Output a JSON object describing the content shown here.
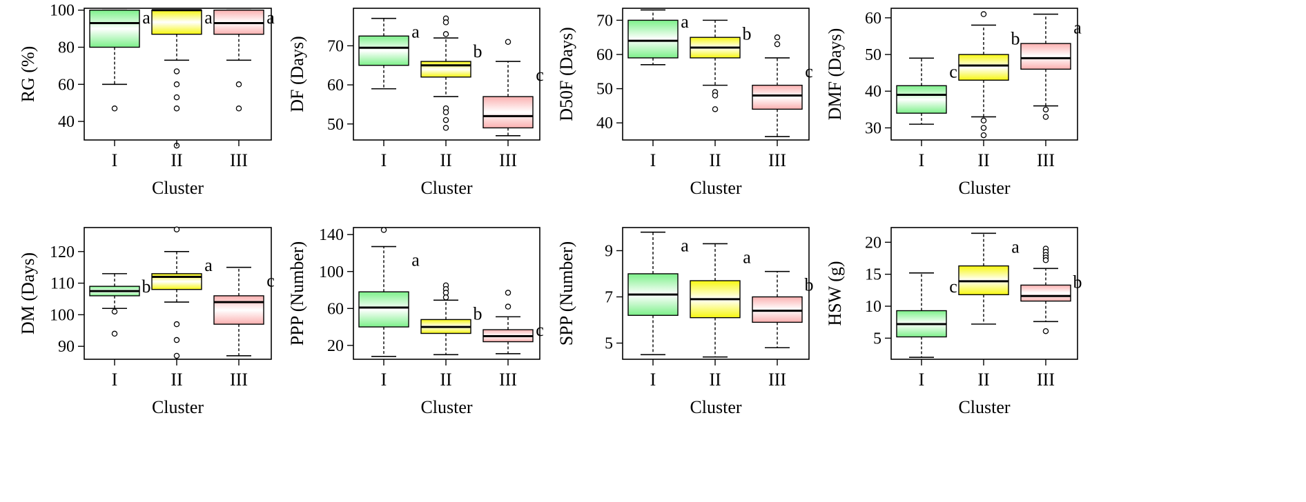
{
  "colors": {
    "I": "#7df08a",
    "II": "#f7f70f",
    "III": "#fbb0b0",
    "grad_light": "#ffffff"
  },
  "chart_data": [
    {
      "type": "box",
      "title": "",
      "xlabel": "Cluster",
      "ylabel": "RG (%)",
      "categories": [
        "I",
        "II",
        "III"
      ],
      "ylim": [
        30,
        101
      ],
      "yticks": [
        40,
        60,
        80,
        100
      ],
      "boxes": [
        {
          "min": 60,
          "q1": 80,
          "median": 93,
          "q3": 100,
          "max": 100,
          "outliers": [
            47
          ],
          "letter": "a"
        },
        {
          "min": 73,
          "q1": 87,
          "median": 100,
          "q3": 100,
          "max": 100,
          "outliers": [
            67,
            60,
            53,
            47,
            27
          ],
          "letter": "a"
        },
        {
          "min": 73,
          "q1": 87,
          "median": 93,
          "q3": 100,
          "max": 100,
          "outliers": [
            60,
            47
          ],
          "letter": "a"
        }
      ]
    },
    {
      "type": "box",
      "title": "",
      "xlabel": "Cluster",
      "ylabel": "DF (Days)",
      "categories": [
        "I",
        "II",
        "III"
      ],
      "ylim": [
        45.9,
        79.6
      ],
      "yticks": [
        50,
        60,
        70
      ],
      "boxes": [
        {
          "min": 59,
          "q1": 65,
          "median": 69.5,
          "q3": 72.5,
          "max": 77,
          "outliers": [],
          "letter": "a"
        },
        {
          "min": 57,
          "q1": 62,
          "median": 65,
          "q3": 66,
          "max": 72,
          "outliers": [
            77,
            76,
            73,
            54,
            53,
            51,
            49
          ],
          "letter": "b"
        },
        {
          "min": 47,
          "q1": 49,
          "median": 52,
          "q3": 57,
          "max": 66,
          "outliers": [
            71
          ],
          "letter": "c"
        }
      ]
    },
    {
      "type": "box",
      "title": "",
      "xlabel": "Cluster",
      "ylabel": "D50F (Days)",
      "categories": [
        "I",
        "II",
        "III"
      ],
      "ylim": [
        35,
        73.5
      ],
      "yticks": [
        40,
        50,
        60,
        70
      ],
      "boxes": [
        {
          "min": 57,
          "q1": 59,
          "median": 64,
          "q3": 70,
          "max": 73,
          "outliers": [],
          "letter": "a"
        },
        {
          "min": 51,
          "q1": 59,
          "median": 62,
          "q3": 65,
          "max": 70,
          "outliers": [
            49,
            48,
            44
          ],
          "letter": "b"
        },
        {
          "min": 36,
          "q1": 44,
          "median": 48,
          "q3": 51,
          "max": 59,
          "outliers": [
            65,
            63
          ],
          "letter": "c"
        }
      ]
    },
    {
      "type": "box",
      "title": "",
      "xlabel": "Cluster",
      "ylabel": "DMF (Days)",
      "categories": [
        "I",
        "II",
        "III"
      ],
      "ylim": [
        26.7,
        62.6
      ],
      "yticks": [
        30,
        40,
        50,
        60
      ],
      "boxes": [
        {
          "min": 31,
          "q1": 34,
          "median": 39,
          "q3": 41.5,
          "max": 49,
          "outliers": [],
          "letter": "c"
        },
        {
          "min": 33,
          "q1": 43,
          "median": 47,
          "q3": 50,
          "max": 58,
          "outliers": [
            61,
            32,
            30,
            28
          ],
          "letter": "b"
        },
        {
          "min": 36,
          "q1": 46,
          "median": 49,
          "q3": 53,
          "max": 61,
          "outliers": [
            35,
            33
          ],
          "letter": "a"
        }
      ]
    },
    {
      "type": "box",
      "title": "",
      "xlabel": "Cluster",
      "ylabel": "DM (Days)",
      "categories": [
        "I",
        "II",
        "III"
      ],
      "ylim": [
        85.9,
        127.6
      ],
      "yticks": [
        90,
        100,
        110,
        120
      ],
      "boxes": [
        {
          "min": 102,
          "q1": 106,
          "median": 107.5,
          "q3": 109,
          "max": 113,
          "outliers": [
            101,
            94
          ],
          "letter": "b"
        },
        {
          "min": 104,
          "q1": 108,
          "median": 112,
          "q3": 113,
          "max": 120,
          "outliers": [
            127,
            97,
            92,
            87
          ],
          "letter": "a"
        },
        {
          "min": 87,
          "q1": 97,
          "median": 104,
          "q3": 106,
          "max": 115,
          "outliers": [],
          "letter": "c"
        }
      ]
    },
    {
      "type": "box",
      "title": "",
      "xlabel": "Cluster",
      "ylabel": "PPP (Number)",
      "categories": [
        "I",
        "II",
        "III"
      ],
      "ylim": [
        5,
        147.6
      ],
      "yticks": [
        20,
        60,
        100,
        140
      ],
      "boxes": [
        {
          "min": 8,
          "q1": 40,
          "median": 61,
          "q3": 78,
          "max": 127,
          "outliers": [
            145
          ],
          "letter": "a"
        },
        {
          "min": 10,
          "q1": 33,
          "median": 40,
          "q3": 48,
          "max": 69,
          "outliers": [
            85,
            81,
            77,
            72
          ],
          "letter": "b"
        },
        {
          "min": 11,
          "q1": 24,
          "median": 30,
          "q3": 37,
          "max": 51,
          "outliers": [
            77,
            62
          ],
          "letter": "c"
        }
      ]
    },
    {
      "type": "box",
      "title": "",
      "xlabel": "Cluster",
      "ylabel": "SPP (Number)",
      "categories": [
        "I",
        "II",
        "III"
      ],
      "ylim": [
        4.3,
        10
      ],
      "yticks": [
        5,
        7,
        9
      ],
      "boxes": [
        {
          "min": 4.5,
          "q1": 6.2,
          "median": 7.1,
          "q3": 8,
          "max": 9.8,
          "outliers": [],
          "letter": "a"
        },
        {
          "min": 4.4,
          "q1": 6.1,
          "median": 6.9,
          "q3": 7.7,
          "max": 9.3,
          "outliers": [],
          "letter": "a"
        },
        {
          "min": 4.8,
          "q1": 5.9,
          "median": 6.4,
          "q3": 7,
          "max": 8.1,
          "outliers": [],
          "letter": "b"
        }
      ]
    },
    {
      "type": "box",
      "title": "",
      "xlabel": "Cluster",
      "ylabel": "HSW (g)",
      "categories": [
        "I",
        "II",
        "III"
      ],
      "ylim": [
        1.7,
        22.3
      ],
      "yticks": [
        5,
        10,
        15,
        20
      ],
      "boxes": [
        {
          "min": 2,
          "q1": 5.2,
          "median": 7.2,
          "q3": 9.3,
          "max": 15.2,
          "outliers": [],
          "letter": "c"
        },
        {
          "min": 7.2,
          "q1": 11.8,
          "median": 13.9,
          "q3": 16.3,
          "max": 21.4,
          "outliers": [],
          "letter": "a"
        },
        {
          "min": 7.6,
          "q1": 10.8,
          "median": 11.6,
          "q3": 13.3,
          "max": 15.9,
          "outliers": [
            19,
            18.5,
            18,
            17.6,
            17.2,
            6.1
          ],
          "letter": "b"
        }
      ]
    }
  ]
}
